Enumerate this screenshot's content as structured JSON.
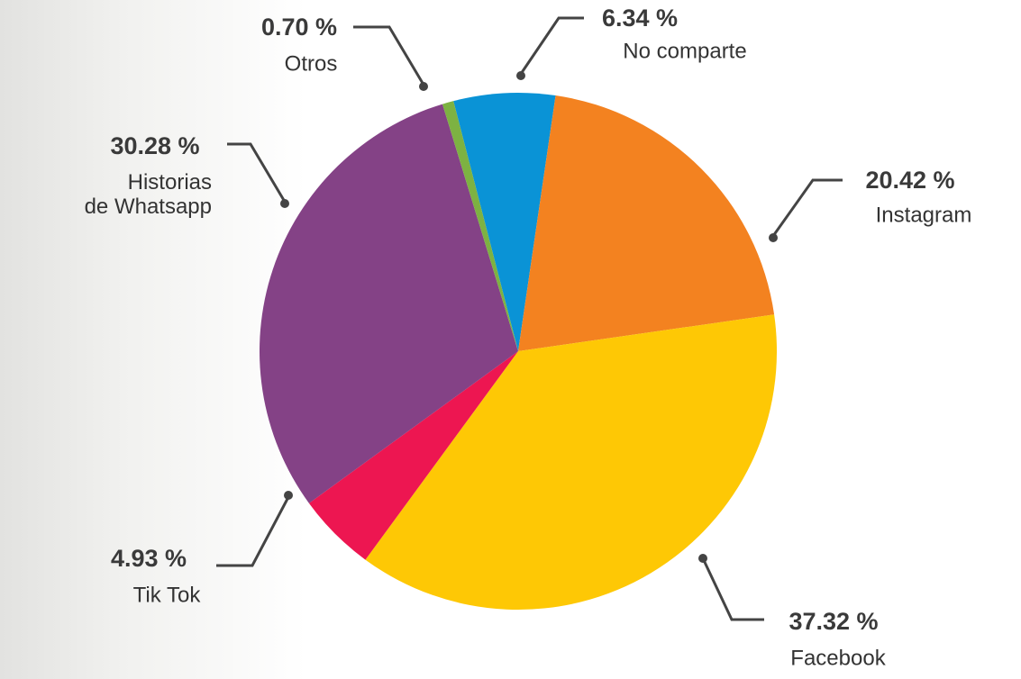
{
  "chart_data": {
    "type": "pie",
    "categories": [
      "No comparte",
      "Instagram",
      "Facebook",
      "Tik Tok",
      "Historias\nde Whatsapp",
      "Otros"
    ],
    "values": [
      6.34,
      20.42,
      37.32,
      4.93,
      30.28,
      0.7
    ],
    "value_labels": [
      "6.34 %",
      "20.42 %",
      "37.32 %",
      "4.93 %",
      "30.28 %",
      "0.70 %"
    ],
    "colors": [
      "#0a93d6",
      "#f38220",
      "#fec805",
      "#ed1651",
      "#844286",
      "#7db242"
    ]
  }
}
